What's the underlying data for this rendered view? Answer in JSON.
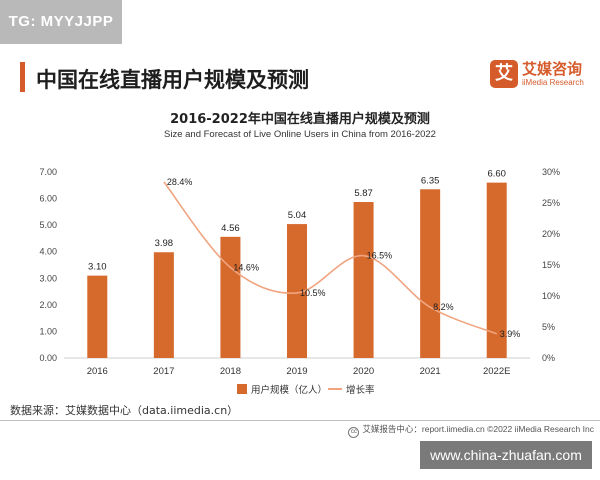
{
  "badge": {
    "text": "TG: MYYJJPP"
  },
  "header": {
    "title": "中国在线直播用户规模及预测"
  },
  "brand": {
    "icon_glyph": "艾",
    "name_cn": "艾媒咨询",
    "name_en": "iiMedia Research",
    "color": "#d55b2b"
  },
  "source": {
    "text": "数据来源：艾媒数据中心（data.iimedia.cn）"
  },
  "footer": {
    "text": "艾媒报告中心：report.iimedia.cn  ©2022  iiMedia Research  Inc"
  },
  "watermark": {
    "text": "www.china-zhuafan.com"
  },
  "chart_data": {
    "type": "bar",
    "title": "2016-2022年中国在线直播用户规模及预测",
    "subtitle": "Size and Forecast of Live Online Users in China from 2016-2022",
    "categories": [
      "2016",
      "2017",
      "2018",
      "2019",
      "2020",
      "2021",
      "2022E"
    ],
    "series": [
      {
        "name": "用户规模（亿人）",
        "kind": "bar",
        "axis": "left",
        "color": "#d6692c",
        "values": [
          3.1,
          3.98,
          4.56,
          5.04,
          5.87,
          6.35,
          6.6
        ],
        "labels": [
          "3.10",
          "3.98",
          "4.56",
          "5.04",
          "5.87",
          "6.35",
          "6.60"
        ]
      },
      {
        "name": "增长率",
        "kind": "line",
        "axis": "right",
        "color": "#f0a47f",
        "smooth": true,
        "values": [
          null,
          28.4,
          14.6,
          10.5,
          16.5,
          8.2,
          3.9
        ],
        "labels": [
          "",
          "28.4%",
          "14.6%",
          "10.5%",
          "16.5%",
          "8.2%",
          "3.9%"
        ]
      }
    ],
    "yleft": {
      "ticks": [
        "0.00",
        "1.00",
        "2.00",
        "3.00",
        "4.00",
        "5.00",
        "6.00",
        "7.00"
      ],
      "lim": [
        0,
        7
      ]
    },
    "yright": {
      "ticks": [
        "0%",
        "5%",
        "10%",
        "15%",
        "20%",
        "25%",
        "30%"
      ],
      "lim": [
        0,
        30
      ]
    },
    "grid": false,
    "legend": "bottom-center"
  }
}
